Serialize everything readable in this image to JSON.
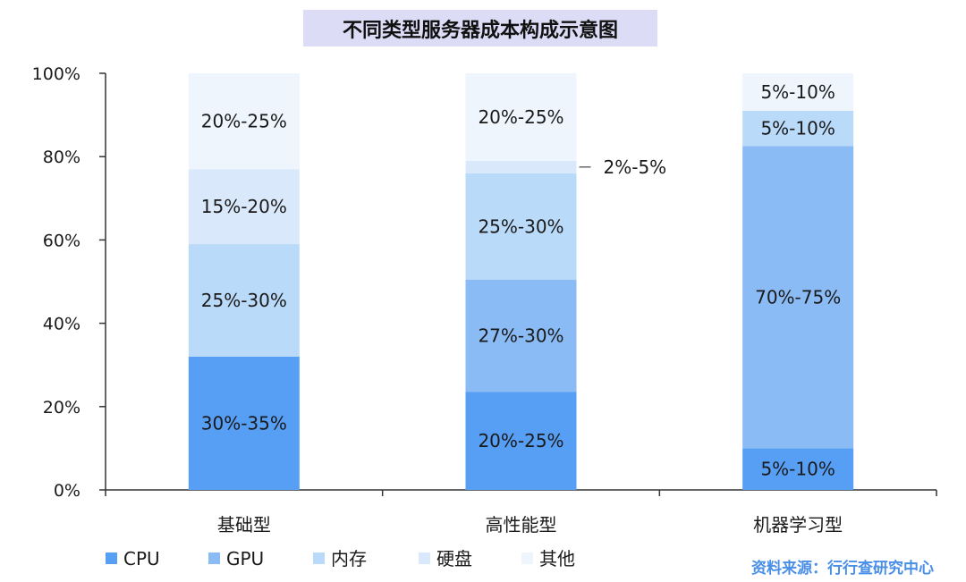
{
  "chart_data": {
    "type": "bar",
    "stacked": true,
    "title": "不同类型服务器成本构成示意图",
    "categories": [
      "基础型",
      "高性能型",
      "机器学习型"
    ],
    "ylim": [
      0,
      100
    ],
    "yticks": [
      "0%",
      "20%",
      "40%",
      "60%",
      "80%",
      "100%"
    ],
    "grid": false,
    "legend_position": "bottom",
    "series": [
      {
        "name": "CPU",
        "color": "#579ff5",
        "values": [
          32,
          23.5,
          10
        ],
        "labels": [
          "30%-35%",
          "20%-25%",
          "5%-10%"
        ]
      },
      {
        "name": "GPU",
        "color": "#8abbf5",
        "values": [
          0,
          27,
          72.5
        ],
        "labels": [
          "",
          "27%-30%",
          "70%-75%"
        ]
      },
      {
        "name": "内存",
        "color": "#badaf9",
        "values": [
          27,
          25.5,
          8.5
        ],
        "labels": [
          "25%-30%",
          "25%-30%",
          "5%-10%"
        ]
      },
      {
        "name": "硬盘",
        "color": "#d9e9fb",
        "values": [
          18,
          3,
          0
        ],
        "labels": [
          "15%-20%",
          "2%-5%",
          ""
        ]
      },
      {
        "name": "其他",
        "color": "#eef5fd",
        "values": [
          23,
          21,
          9
        ],
        "labels": [
          "20%-25%",
          "20%-25%",
          "5%-10%"
        ]
      }
    ],
    "source": "资料来源：行行查研究中心"
  }
}
